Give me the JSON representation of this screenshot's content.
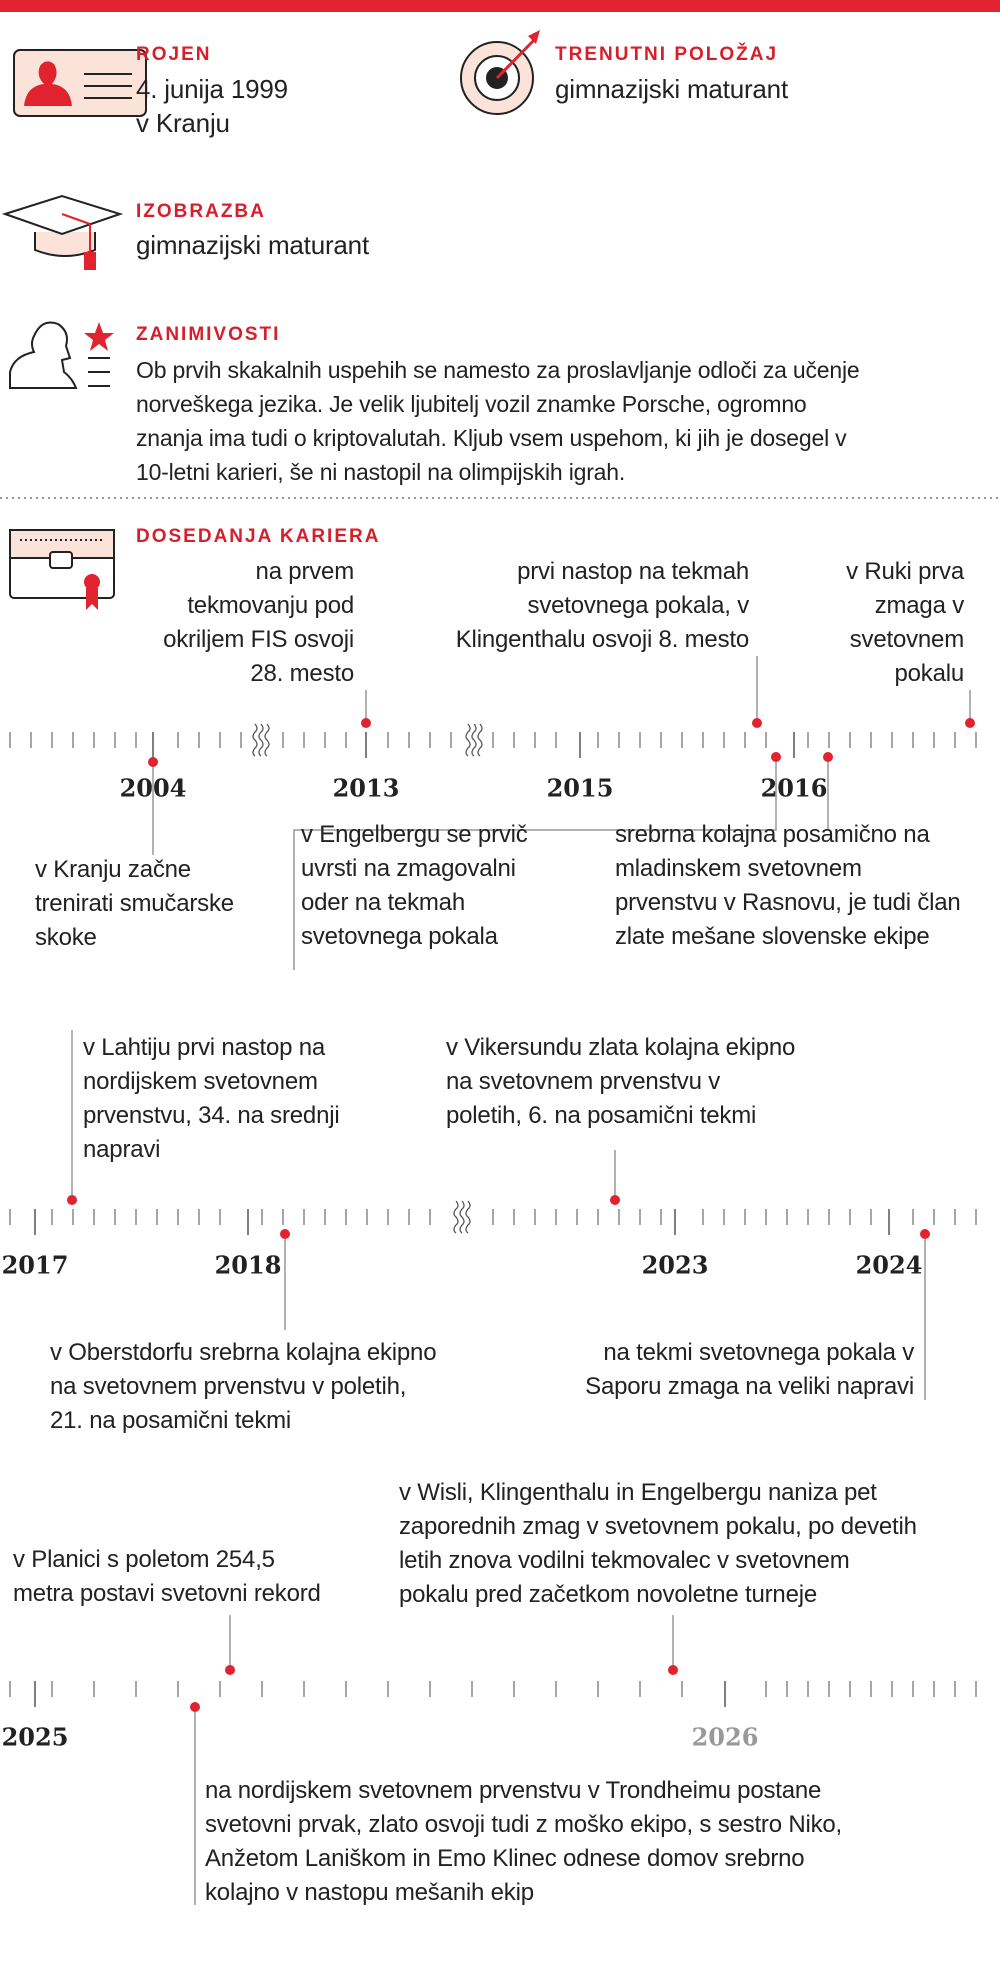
{
  "profile": {
    "born": {
      "label": "ROJEN",
      "lines": [
        "4. junija 1999",
        "v Kranju"
      ]
    },
    "position": {
      "label": "TRENUTNI POLOŽAJ",
      "lines": [
        "gimnazijski maturant"
      ]
    },
    "education": {
      "label": "IZOBRAZBA",
      "lines": [
        "gimnazijski maturant"
      ]
    },
    "trivia": {
      "label": "ZANIMIVOSTI",
      "lines": [
        "Ob prvih skakalnih uspehih se namesto za proslavljanje odloči za učenje",
        "norveškega jezika. Je velik ljubitelj vozil znamke Porsche, ogromno",
        "znanja ima tudi o kriptovalutah. Kljub vsem uspehom, ki jih je dosegel v",
        "10-letni karieri, še ni nastopil na olimpijskih igrah."
      ]
    }
  },
  "career": {
    "label": "DOSEDANJA KARIERA",
    "timelines": [
      {
        "years": [
          "2004",
          "2013",
          "2015",
          "2016"
        ],
        "events": [
          {
            "lines": [
              "na prvem",
              "tekmovanju pod",
              "okriljem FIS osvoji",
              "28. mesto"
            ]
          },
          {
            "lines": [
              "prvi nastop na tekmah",
              "svetovnega pokala, v",
              "Klingenthalu osvoji 8. mesto"
            ]
          },
          {
            "lines": [
              "v Ruki prva",
              "zmaga v",
              "svetovnem",
              "pokalu"
            ]
          },
          {
            "lines": [
              "v Kranju začne",
              "trenirati smučarske",
              "skoke"
            ]
          },
          {
            "lines": [
              "v Engelbergu se prvič",
              "uvrsti na zmagovalni",
              "oder na tekmah",
              "svetovnega pokala"
            ]
          },
          {
            "lines": [
              "srebrna kolajna posamično na",
              "mladinskem svetovnem",
              "prvenstvu v Rasnovu, je tudi član",
              "zlate mešane slovenske ekipe"
            ]
          }
        ]
      },
      {
        "years": [
          "2017",
          "2018",
          "2023",
          "2024"
        ],
        "events": [
          {
            "lines": [
              "v Lahtiju prvi nastop na",
              "nordijskem svetovnem",
              "prvenstvu, 34. na srednji",
              "napravi"
            ]
          },
          {
            "lines": [
              "v Vikersundu zlata kolajna ekipno",
              "na svetovnem prvenstvu v",
              "poletih, 6. na posamični tekmi"
            ]
          },
          {
            "lines": [
              "v Oberstdorfu srebrna kolajna ekipno",
              "na svetovnem prvenstvu v poletih,",
              "21. na posamični tekmi"
            ]
          },
          {
            "lines": [
              "na tekmi svetovnega pokala v",
              "Saporu zmaga na veliki napravi"
            ]
          }
        ]
      },
      {
        "years": [
          "2025",
          "2026"
        ],
        "events": [
          {
            "lines": [
              "v Planici s poletom 254,5",
              "metra postavi svetovni rekord"
            ]
          },
          {
            "lines": [
              "v Wisli, Klingenthalu in Engelbergu naniza pet",
              "zaporednih zmag v svetovnem pokalu, po devetih",
              "letih znova vodilni tekmovalec v svetovnem",
              "pokalu pred začetkom novoletne turneje"
            ]
          },
          {
            "lines": [
              "na nordijskem svetovnem prvenstvu v Trondheimu postane",
              "svetovni prvak, zlato osvoji tudi z moško ekipo, s sestro Niko,",
              "Anžetom Laniškom in Emo Klinec odnese domov srebrno",
              "kolajno v nastopu mešanih ekip"
            ]
          }
        ]
      }
    ]
  }
}
